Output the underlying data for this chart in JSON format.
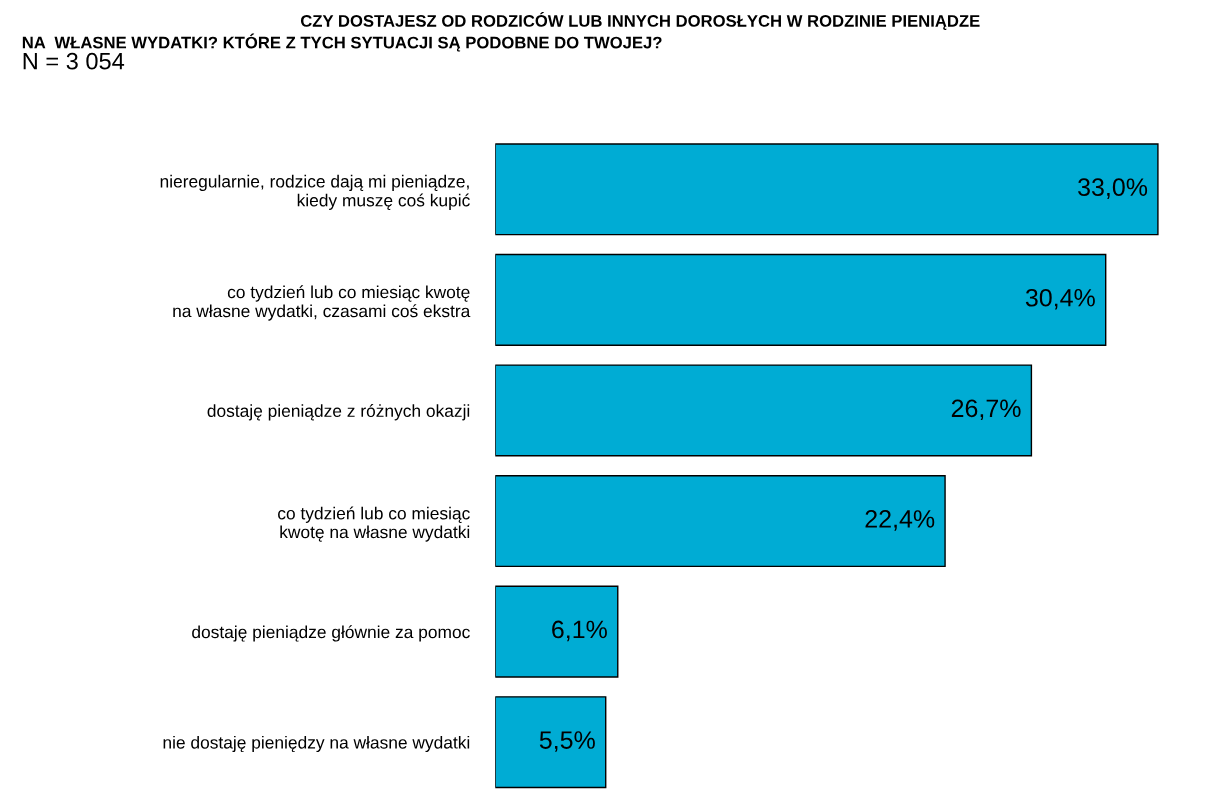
{
  "chart_data": {
    "type": "bar",
    "orientation": "horizontal",
    "title": "CZY DOSTAJESZ OD RODZICÓW LUB INNYCH DOROSŁYCH W RODZINIE PIENIĄDZE\nNA  WŁASNE WYDATKI? KTÓRE Z TYCH SYTUACJI SĄ PODOBNE DO TWOJEJ?",
    "subtitle": "N = 3 054",
    "categories": [
      "nieregularnie, rodzice dają mi pieniądze,\nkiedy muszę coś kupić",
      "co tydzień lub co miesiąc kwotę\nna własne wydatki, czasami coś ekstra",
      "dostaję pieniądze z różnych okazji",
      "co tydzień lub co miesiąc\nkwotę na własne wydatki",
      "dostaję pieniądze głównie za pomoc",
      "nie dostaję pieniędzy na własne wydatki"
    ],
    "values": [
      33.0,
      30.4,
      26.7,
      22.4,
      6.1,
      5.5
    ],
    "value_labels": [
      "33,0%",
      "30,4%",
      "26,7%",
      "22,4%",
      "6,1%",
      "5,5%"
    ],
    "color": "#00acd4",
    "grid": false,
    "legend": false
  }
}
